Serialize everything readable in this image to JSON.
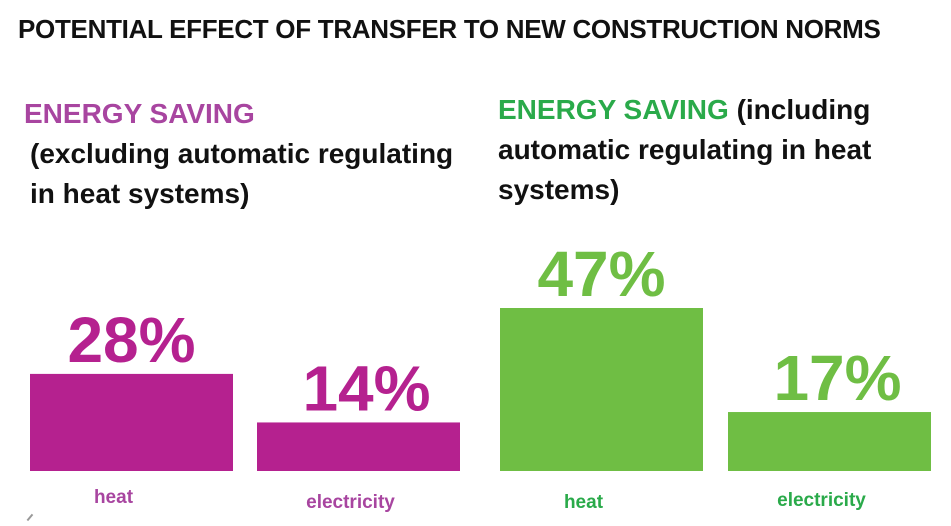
{
  "title": "POTENTIAL EFFECT OF TRANSFER TO NEW CONSTRUCTION NORMS",
  "colors": {
    "purple": "#b5218f",
    "green": "#6fbe44",
    "green_text": "#2aaa4a",
    "purple_text": "#a845a0"
  },
  "chart_data": [
    {
      "type": "bar",
      "title_accent": "ENERGY SAVING",
      "title_rest": "(excluding automatic regulating in heat systems)",
      "categories": [
        "heat",
        "electricity"
      ],
      "values": [
        28,
        14
      ],
      "value_labels": [
        "28%",
        "14%"
      ],
      "ylim": [
        0,
        47
      ],
      "grid": false
    },
    {
      "type": "bar",
      "title_accent": "ENERGY SAVING",
      "title_rest": "(including automatic regulating in heat systems)",
      "categories": [
        "heat",
        "electricity"
      ],
      "values": [
        47,
        17
      ],
      "value_labels": [
        "47%",
        "17%"
      ],
      "ylim": [
        0,
        47
      ],
      "grid": false
    }
  ]
}
